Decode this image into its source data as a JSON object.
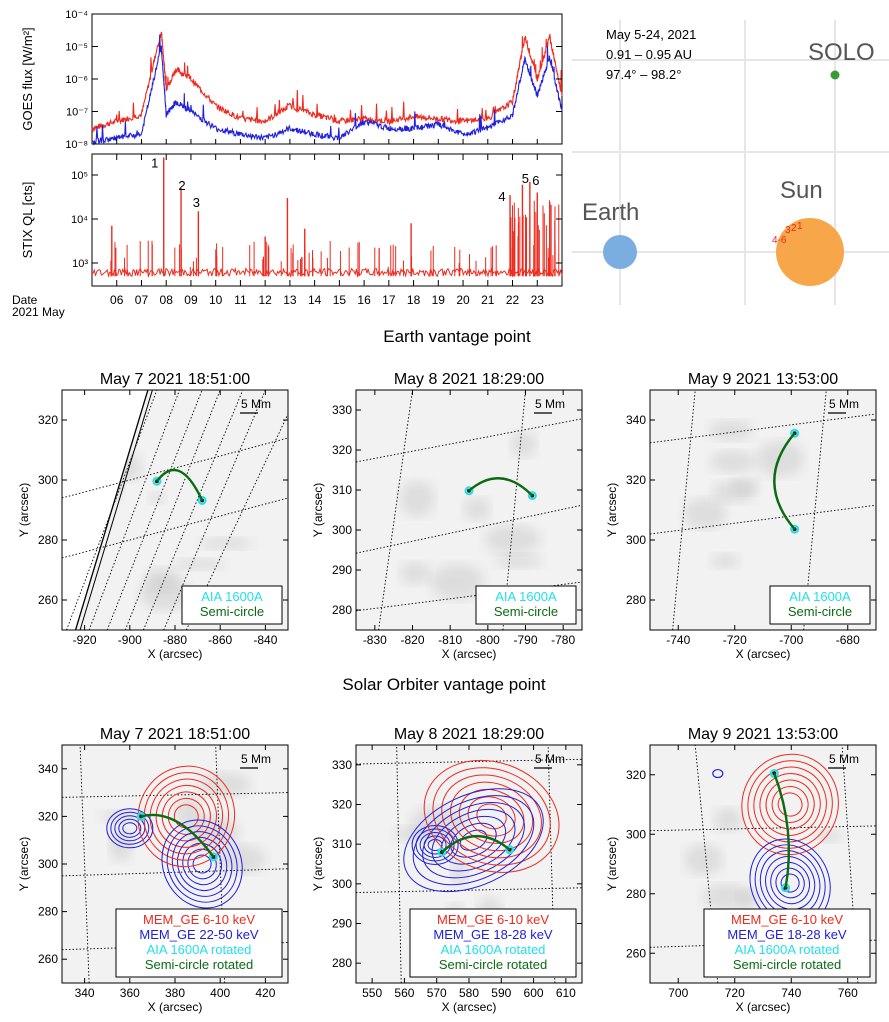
{
  "section_titles": {
    "earth": "Earth vantage point",
    "solo": "Solar Orbiter vantage point"
  },
  "colors": {
    "red": "#ee2a1e",
    "blue": "#2020dd",
    "cyan": "#22e0e8",
    "green": "#0a6b12",
    "orange": "#f7a64a",
    "earth_blue": "#7aaee0"
  },
  "chart_data": [
    {
      "type": "line",
      "id": "goes",
      "ylabel": "GOES flux [W/m²]",
      "yscale": "log",
      "ylim": [
        1e-08,
        0.0001
      ],
      "yticks": [
        "10⁻⁸",
        "10⁻⁷",
        "10⁻⁶",
        "10⁻⁵",
        "10⁻⁴"
      ],
      "xlim": [
        "2021-05-05",
        "2021-05-24"
      ],
      "series": [
        {
          "color": "red",
          "x": [
            "2021-05-05",
            "2021-05-06",
            "2021-05-07",
            "2021-05-07.8",
            "2021-05-08",
            "2021-05-08.4",
            "2021-05-09",
            "2021-05-10",
            "2021-05-11",
            "2021-05-12",
            "2021-05-13",
            "2021-05-14",
            "2021-05-15",
            "2021-05-16",
            "2021-05-17",
            "2021-05-18",
            "2021-05-19",
            "2021-05-20",
            "2021-05-21",
            "2021-05-22",
            "2021-05-22.5",
            "2021-05-23",
            "2021-05-23.5",
            "2021-05-24"
          ],
          "values": [
            3e-08,
            5e-08,
            8e-08,
            3e-05,
            5e-07,
            2e-06,
            1e-06,
            1.5e-07,
            6e-08,
            5e-08,
            1.5e-07,
            8e-08,
            5e-08,
            6e-08,
            5e-08,
            7e-08,
            6e-08,
            5e-08,
            6e-08,
            2e-07,
            2e-05,
            1e-06,
            2e-05,
            3e-07
          ]
        },
        {
          "color": "blue",
          "x": [
            "2021-05-05",
            "2021-05-06",
            "2021-05-07",
            "2021-05-07.8",
            "2021-05-08",
            "2021-05-08.4",
            "2021-05-09",
            "2021-05-10",
            "2021-05-11",
            "2021-05-12",
            "2021-05-13",
            "2021-05-14",
            "2021-05-15",
            "2021-05-16",
            "2021-05-17",
            "2021-05-18",
            "2021-05-19",
            "2021-05-20",
            "2021-05-21",
            "2021-05-22",
            "2021-05-22.5",
            "2021-05-23",
            "2021-05-23.5",
            "2021-05-24"
          ],
          "values": [
            1.2e-08,
            1.5e-08,
            2e-08,
            1e-05,
            8e-08,
            2e-07,
            1e-07,
            3e-08,
            2e-08,
            1.5e-08,
            3e-08,
            2e-08,
            1.5e-08,
            5e-08,
            3e-08,
            3e-08,
            4e-08,
            2e-08,
            3e-08,
            8e-08,
            4e-06,
            3e-07,
            5e-06,
            1e-07
          ]
        }
      ]
    },
    {
      "type": "bar",
      "id": "stix",
      "ylabel": "STIX QL [cts]",
      "yscale": "log",
      "ylim": [
        300,
        300000
      ],
      "yticks": [
        "10³",
        "10⁴",
        "10⁵"
      ],
      "xlabel_prefix": "Date",
      "xlabel_sub": "2021 May",
      "day_ticks": [
        "06",
        "07",
        "08",
        "09",
        "10",
        "11",
        "12",
        "13",
        "14",
        "15",
        "16",
        "17",
        "18",
        "19",
        "20",
        "21",
        "22",
        "23"
      ],
      "peaks": [
        {
          "day": 5.8,
          "value": 7000
        },
        {
          "day": 7.9,
          "value": 250000,
          "label": "1"
        },
        {
          "day": 8.6,
          "value": 50000,
          "label": "2"
        },
        {
          "day": 9.3,
          "value": 15000,
          "label": "3"
        },
        {
          "day": 12.0,
          "value": 4000
        },
        {
          "day": 12.9,
          "value": 30000
        },
        {
          "day": 13.6,
          "value": 6000
        },
        {
          "day": 17.9,
          "value": 8000
        },
        {
          "day": 21.9,
          "value": 35000,
          "label": "4"
        },
        {
          "day": 22.4,
          "value": 60000,
          "label": "5"
        },
        {
          "day": 22.7,
          "value": 70000,
          "label": "6"
        },
        {
          "day": 23.0,
          "value": 40000
        }
      ]
    },
    {
      "type": "diagram",
      "id": "orbit",
      "text_lines": [
        "May 5-24, 2021",
        "0.91 – 0.95 AU",
        "97.4° – 98.2°"
      ],
      "solo_label": "SOLO",
      "sun_label": "Sun",
      "earth_label": "Earth",
      "sun_marks": [
        "3",
        "2",
        "1",
        "4-6"
      ]
    }
  ],
  "panels_earth": [
    {
      "title": "May 7 2021 18:51:00",
      "scale": "5 Mm",
      "xlabel": "X (arcsec)",
      "ylabel": "Y (arcsec)",
      "xticks": [
        "-920",
        "-900",
        "-880",
        "-860",
        "-840"
      ],
      "yticks": [
        "260",
        "280",
        "300",
        "320"
      ],
      "legend": [
        "AIA 1600A",
        "Semi-circle"
      ]
    },
    {
      "title": "May 8 2021 18:29:00",
      "scale": "5 Mm",
      "xlabel": "X (arcsec)",
      "ylabel": "Y (arcsec)",
      "xticks": [
        "-830",
        "-820",
        "-810",
        "-800",
        "-790",
        "-780"
      ],
      "yticks": [
        "280",
        "290",
        "300",
        "310",
        "320",
        "330"
      ],
      "legend": [
        "AIA 1600A",
        "Semi-circle"
      ]
    },
    {
      "title": "May 9 2021 13:53:00",
      "scale": "5 Mm",
      "xlabel": "X (arcsec)",
      "ylabel": "Y (arcsec)",
      "xticks": [
        "-740",
        "-720",
        "-700",
        "-680"
      ],
      "yticks": [
        "280",
        "300",
        "320",
        "340"
      ],
      "legend": [
        "AIA 1600A",
        "Semi-circle"
      ]
    }
  ],
  "panels_solo": [
    {
      "title": "May 7 2021 18:51:00",
      "scale": "5 Mm",
      "xlabel": "X (arcsec)",
      "ylabel": "Y (arcsec)",
      "xticks": [
        "340",
        "360",
        "380",
        "400",
        "420"
      ],
      "yticks": [
        "260",
        "280",
        "300",
        "320",
        "340"
      ],
      "legend": [
        "MEM_GE 6-10 keV",
        "MEM_GE 22-50 keV",
        "AIA 1600A rotated",
        "Semi-circle rotated"
      ]
    },
    {
      "title": "May 8 2021 18:29:00",
      "scale": "5 Mm",
      "xlabel": "X (arcsec)",
      "ylabel": "Y (arcsec)",
      "xticks": [
        "550",
        "560",
        "570",
        "580",
        "590",
        "600",
        "610"
      ],
      "yticks": [
        "280",
        "290",
        "300",
        "310",
        "320",
        "330"
      ],
      "legend": [
        "MEM_GE 6-10 keV",
        "MEM_GE 18-28 keV",
        "AIA 1600A rotated",
        "Semi-circle rotated"
      ]
    },
    {
      "title": "May 9 2021 13:53:00",
      "scale": "5 Mm",
      "xlabel": "X (arcsec)",
      "ylabel": "Y (arcsec)",
      "xticks": [
        "700",
        "720",
        "740",
        "760"
      ],
      "yticks": [
        "260",
        "280",
        "300",
        "320"
      ],
      "legend": [
        "MEM_GE 6-10 keV",
        "MEM_GE 18-28 keV",
        "AIA 1600A rotated",
        "Semi-circle rotated"
      ]
    }
  ]
}
